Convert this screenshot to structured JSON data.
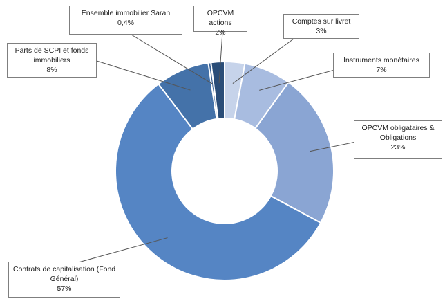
{
  "chart_data": {
    "type": "donut",
    "categories": [
      "Comptes sur livret",
      "Instruments monétaires",
      "OPCVM obligataires & Obligations",
      "Contrats de capitalisation (Fond Général)",
      "Parts de SCPI et fonds immobiliers",
      "Ensemble immobilier Saran",
      "OPCVM actions"
    ],
    "values": [
      3,
      7,
      23,
      57,
      8,
      0.4,
      2
    ],
    "value_labels": [
      "3%",
      "7%",
      "23%",
      "57%",
      "8%",
      "0,4%",
      "2%"
    ],
    "colors": [
      "#c6d3ea",
      "#a8bce0",
      "#8aa5d3",
      "#5585c4",
      "#4472a9",
      "#3a6295",
      "#2a4d78"
    ]
  }
}
